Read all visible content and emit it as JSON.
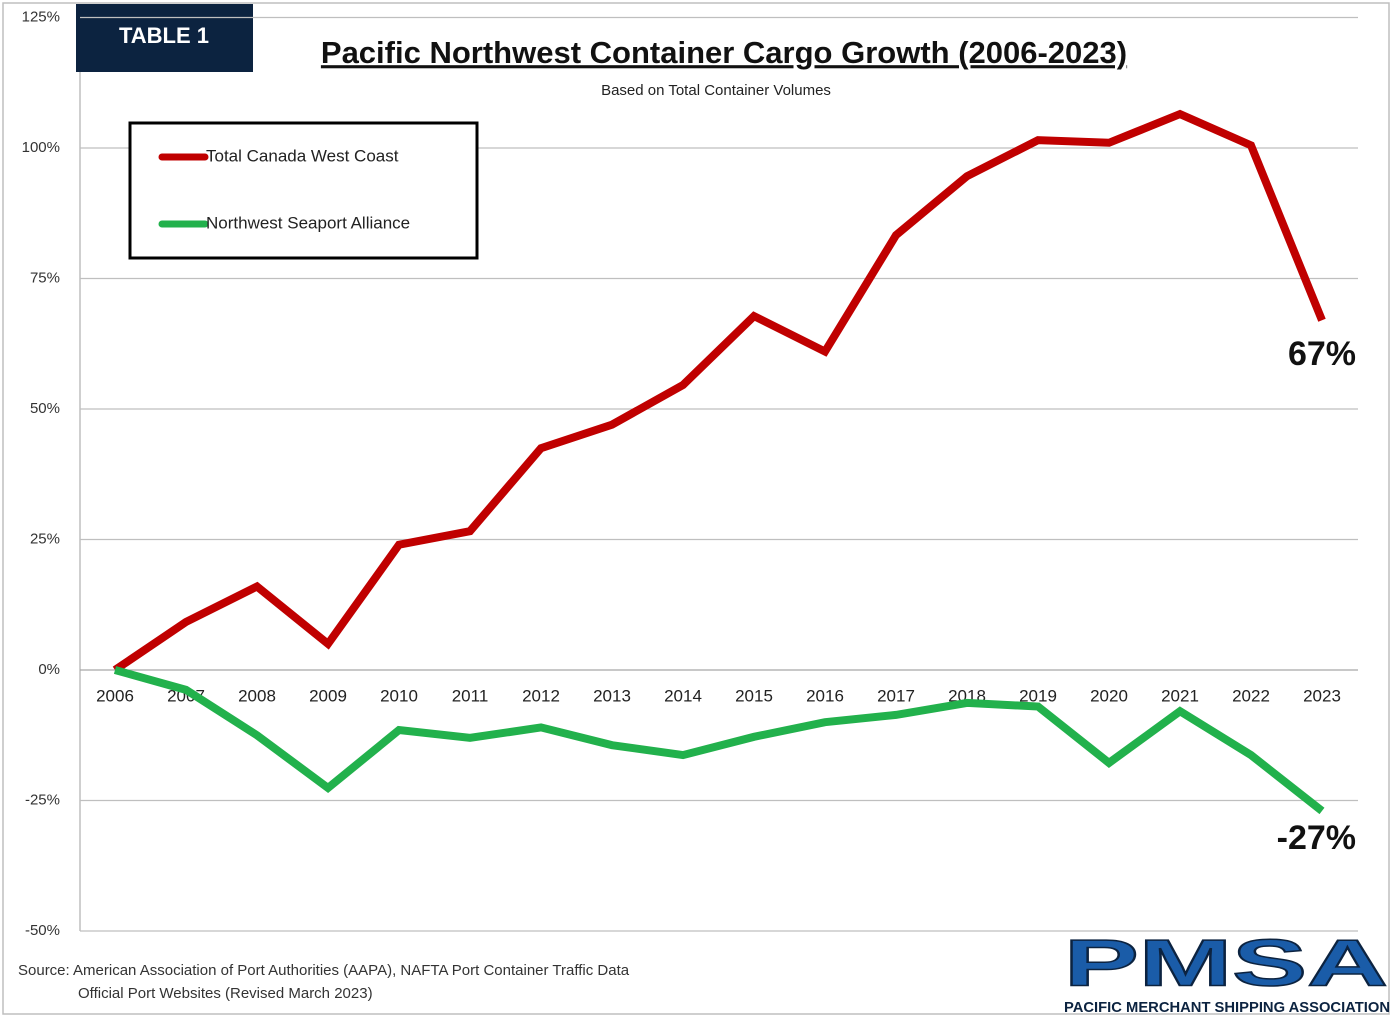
{
  "chart_data": {
    "type": "line",
    "badge": "TABLE 1",
    "title": "Pacific Northwest Container Cargo Growth (2006-2023)",
    "subtitle": "Based on Total Container Volumes",
    "categories": [
      "2006",
      "2007",
      "2008",
      "2009",
      "2010",
      "2011",
      "2012",
      "2013",
      "2014",
      "2015",
      "2016",
      "2017",
      "2018",
      "2019",
      "2020",
      "2021",
      "2022",
      "2023"
    ],
    "series": [
      {
        "name": "Total Canada West Coast",
        "color": "#c00000",
        "values": [
          0,
          9.2,
          16,
          5,
          24,
          26.6,
          42.5,
          47,
          54.6,
          67.8,
          61,
          83.3,
          94.6,
          101.5,
          101,
          106.5,
          100.5,
          67
        ],
        "value_labels": [
          null,
          null,
          null,
          null,
          null,
          null,
          null,
          null,
          null,
          null,
          null,
          null,
          null,
          null,
          null,
          null,
          null,
          "67%"
        ]
      },
      {
        "name": "Northwest Seaport Alliance",
        "color": "#22b14c",
        "values": [
          0,
          -3.8,
          -12.5,
          -22.6,
          -11.5,
          -13,
          -11,
          -14.4,
          -16.3,
          -12.8,
          -10,
          -8.6,
          -6.3,
          -7,
          -17.8,
          -7.9,
          -16.3,
          -27
        ],
        "value_labels": [
          null,
          null,
          null,
          null,
          null,
          null,
          null,
          null,
          null,
          null,
          null,
          null,
          null,
          null,
          null,
          null,
          null,
          "-27%"
        ]
      }
    ],
    "ylim": [
      -50,
      125
    ],
    "yticks": [
      {
        "value": -50,
        "label": "-50%"
      },
      {
        "value": -25,
        "label": "-25%"
      },
      {
        "value": 0,
        "label": "0%"
      },
      {
        "value": 25,
        "label": "25%"
      },
      {
        "value": 50,
        "label": "50%"
      },
      {
        "value": 75,
        "label": "75%"
      },
      {
        "value": 100,
        "label": "100%"
      },
      {
        "value": 125,
        "label": "125%"
      }
    ],
    "grid": true,
    "legend": "top-left",
    "source": [
      "Source:  American Association of Port Authorities (AAPA),  NAFTA Port Container Traffic Data",
      "Official Port Websites (Revised March 2023)"
    ],
    "logo": {
      "text": "PMSA",
      "tagline": "PACIFIC MERCHANT SHIPPING ASSOCIATION"
    }
  }
}
